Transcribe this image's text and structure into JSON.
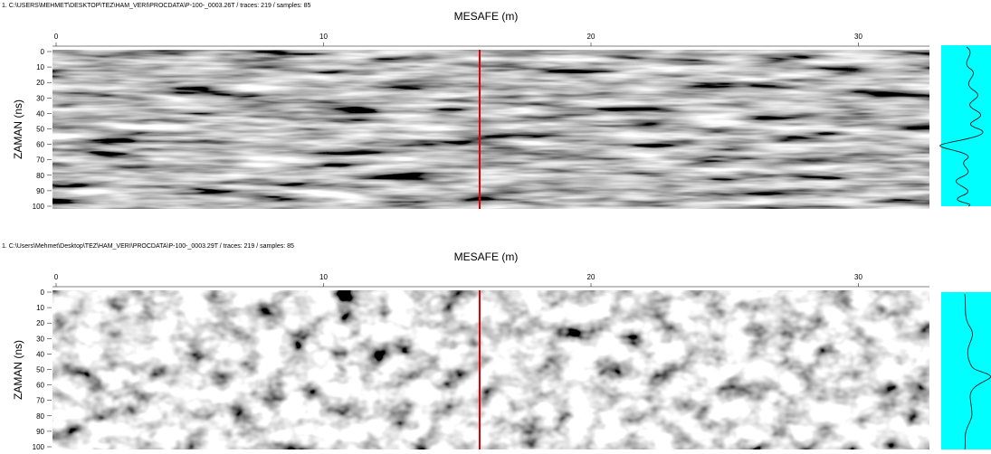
{
  "panels": [
    {
      "header": "1. C:\\USERS\\MEHMET\\DESKTOP\\TEZ\\HAM_VERI\\PROCDATA\\P-100-_0003.26T / traces: 219 / samples: 85",
      "x_label": "MESAFE (m)",
      "y_label": "ZAMAN (ns)",
      "xticks": [
        "0",
        "10",
        "20",
        "30"
      ],
      "yticks": [
        "0",
        "10",
        "20",
        "30",
        "40",
        "50",
        "60",
        "70",
        "80",
        "90",
        "100"
      ]
    },
    {
      "header": "1. C:\\Users\\Mehmet\\Desktop\\TEZ\\HAM_VERI\\PROCDATA\\P-100-_0003.29T / traces: 219 / samples: 85",
      "x_label": "MESAFE (m)",
      "y_label": "ZAMAN (ns)",
      "xticks": [
        "0",
        "10",
        "20",
        "30"
      ],
      "yticks": [
        "0",
        "10",
        "20",
        "30",
        "40",
        "50",
        "60",
        "70",
        "80",
        "90",
        "100"
      ]
    }
  ]
}
